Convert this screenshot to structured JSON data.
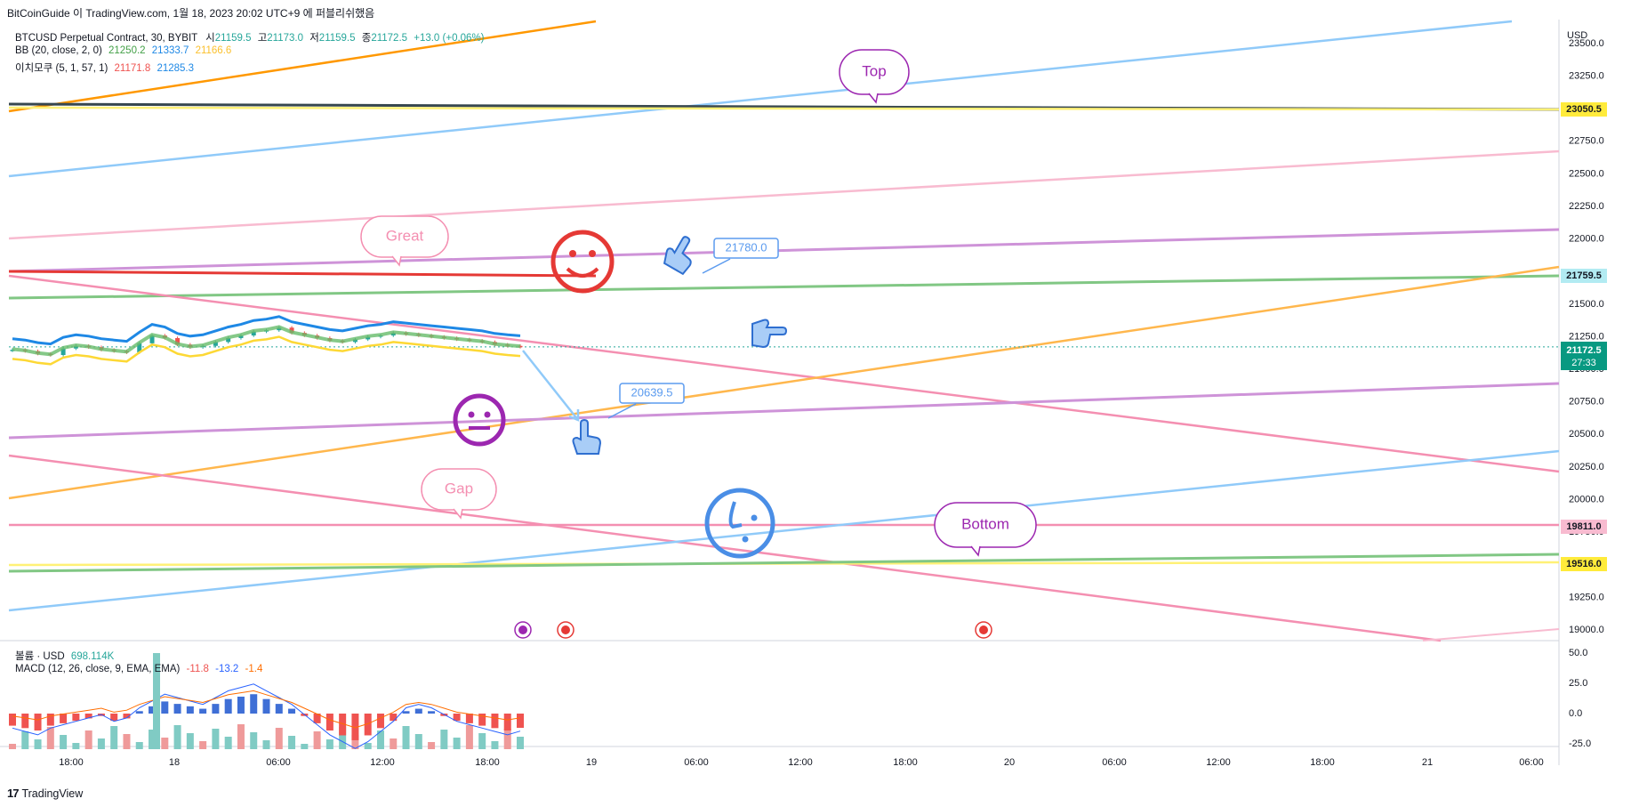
{
  "header": {
    "text": "BitCoinGuide 이 TradingView.com, 1월 18, 2023 20:02 UTC+9 에 퍼블리쉬했음"
  },
  "legend": {
    "symbol": "BTCUSD Perpetual Contract, 30, BYBIT",
    "open_label": "시",
    "open": "21159.5",
    "high_label": "고",
    "high": "21173.0",
    "low_label": "저",
    "low": "21159.5",
    "close_label": "종",
    "close": "21172.5",
    "change": "+13.0 (+0.06%)",
    "bb_label": "BB (20, close, 2, 0)",
    "bb_mid": "21250.2",
    "bb_up": "21333.7",
    "bb_low": "21166.6",
    "ichimoku_label": "이치모쿠 (5, 1, 57, 1)",
    "ich_a": "21171.8",
    "ich_b": "21285.3",
    "volume_label": "볼륨 · USD",
    "volume": "698.114K",
    "macd_label": "MACD (12, 26, close, 9, EMA, EMA)",
    "macd_hist": "-11.8",
    "macd_line": "-13.2",
    "macd_signal": "-1.4"
  },
  "annotations": {
    "top": "Top",
    "great": "Great",
    "gap": "Gap",
    "bottom": "Bottom",
    "price_callout_1": "21780.0",
    "price_callout_2": "20639.5"
  },
  "footer": {
    "brand": "TradingView"
  },
  "colors": {
    "up": "#26a69a",
    "down": "#ef5350",
    "blue": "#2962ff",
    "orange": "#ff9800",
    "pink": "#f48fb1",
    "purple": "#9c27b0",
    "green": "#4caf50",
    "yellow": "#ffeb3b",
    "navy": "#37474f",
    "red": "#e53935",
    "axis_text": "#131722"
  },
  "chart_data": {
    "type": "candlestick",
    "currency": "USD",
    "y_axis_ticks": [
      23500,
      23250,
      22750,
      22500,
      22250,
      22000,
      21500,
      21250,
      21000,
      20750,
      20500,
      20250,
      20000,
      19750,
      19250,
      19000
    ],
    "y_axis_tick_labels": [
      "23500.0",
      "23250.0",
      "22750.0",
      "22500.0",
      "22250.0",
      "22000.0",
      "21500.0",
      "21250.0",
      "21000.0",
      "20750.0",
      "20500.0",
      "20250.0",
      "20000.0",
      "19750.0",
      "19250.0",
      "19000.0"
    ],
    "price_tags": [
      {
        "value": "23050.5",
        "bg": "#ffeb3b",
        "fg": "#131722"
      },
      {
        "value": "21759.5",
        "bg": "#b2ebf2",
        "fg": "#131722"
      },
      {
        "value": "19811.0",
        "bg": "#f8bbd0",
        "fg": "#131722"
      },
      {
        "value": "19516.0",
        "bg": "#ffeb3b",
        "fg": "#131722"
      }
    ],
    "last_price": {
      "value": "21172.5",
      "countdown": "27:33"
    },
    "x_axis_labels": [
      "18:00",
      "18",
      "06:00",
      "12:00",
      "18:00",
      "19",
      "06:00",
      "12:00",
      "18:00",
      "20",
      "06:00",
      "12:00",
      "18:00",
      "21",
      "06:00"
    ],
    "macd_axis_labels": [
      "50.0",
      "25.0",
      "0.0",
      "-25.0"
    ],
    "close_series": [
      21150,
      21140,
      21120,
      21110,
      21160,
      21180,
      21170,
      21150,
      21140,
      21130,
      21200,
      21260,
      21240,
      21190,
      21170,
      21180,
      21210,
      21240,
      21260,
      21290,
      21300,
      21320,
      21280,
      21260,
      21240,
      21220,
      21210,
      21230,
      21250,
      21260,
      21280,
      21270,
      21260,
      21250,
      21240,
      21230,
      21220,
      21210,
      21190,
      21180,
      21172.5
    ],
    "macd_hist": [
      -10,
      -12,
      -14,
      -10,
      -8,
      -6,
      -4,
      -2,
      -6,
      -4,
      2,
      6,
      10,
      8,
      6,
      4,
      8,
      12,
      14,
      16,
      12,
      8,
      4,
      -2,
      -8,
      -14,
      -18,
      -22,
      -18,
      -12,
      -6,
      2,
      4,
      2,
      -2,
      -6,
      -8,
      -10,
      -12,
      -14,
      -11.8
    ]
  }
}
